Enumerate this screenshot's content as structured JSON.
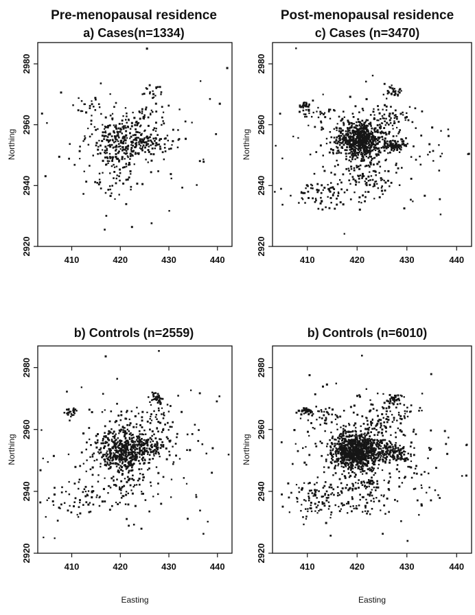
{
  "figure": {
    "left_column_title": "Pre-menopausal residence",
    "right_column_title": "Post-menopausal residence"
  },
  "chart_data": [
    {
      "type": "scatter",
      "title": "a) Cases(n=1334)",
      "xlabel": "",
      "ylabel": "Northing",
      "xlim": [
        403,
        443
      ],
      "ylim": [
        2920,
        2987
      ],
      "xticks": [
        410,
        420,
        430,
        440
      ],
      "yticks": [
        2920,
        2940,
        2960,
        2980
      ],
      "clusters": [
        {
          "x": 420.5,
          "y": 2955,
          "sx": 3.2,
          "sy": 3.5,
          "n": 260
        },
        {
          "x": 426.5,
          "y": 2954,
          "sx": 1.8,
          "sy": 1.5,
          "n": 50
        },
        {
          "x": 427.0,
          "y": 2971,
          "sx": 0.8,
          "sy": 0.8,
          "n": 15
        },
        {
          "x": 413.5,
          "y": 2966,
          "sx": 1.3,
          "sy": 1.5,
          "n": 18
        },
        {
          "x": 420.0,
          "y": 2945,
          "sx": 3.0,
          "sy": 5.0,
          "n": 60
        },
        {
          "x": 426.0,
          "y": 2963,
          "sx": 2.5,
          "sy": 2.5,
          "n": 30
        },
        {
          "x": 423.0,
          "y": 2953,
          "sx": 10.0,
          "sy": 13.0,
          "n": 100
        }
      ]
    },
    {
      "type": "scatter",
      "title": "c) Cases (n=3470)",
      "xlabel": "",
      "ylabel": "Northing",
      "xlim": [
        403,
        443
      ],
      "ylim": [
        2920,
        2987
      ],
      "xticks": [
        410,
        420,
        430,
        440
      ],
      "yticks": [
        2920,
        2940,
        2960,
        2980
      ],
      "clusters": [
        {
          "x": 420.5,
          "y": 2955,
          "sx": 2.5,
          "sy": 3.0,
          "n": 650
        },
        {
          "x": 427.5,
          "y": 2953,
          "sx": 1.2,
          "sy": 1.0,
          "n": 90
        },
        {
          "x": 427.5,
          "y": 2971,
          "sx": 0.8,
          "sy": 0.8,
          "n": 25
        },
        {
          "x": 409.5,
          "y": 2966,
          "sx": 0.6,
          "sy": 0.6,
          "n": 30
        },
        {
          "x": 412.5,
          "y": 2964,
          "sx": 2.0,
          "sy": 2.0,
          "n": 25
        },
        {
          "x": 413.0,
          "y": 2937,
          "sx": 3.5,
          "sy": 2.5,
          "n": 60
        },
        {
          "x": 421.0,
          "y": 2943,
          "sx": 3.0,
          "sy": 4.0,
          "n": 90
        },
        {
          "x": 426.0,
          "y": 2962,
          "sx": 3.0,
          "sy": 3.0,
          "n": 60
        },
        {
          "x": 422.0,
          "y": 2952,
          "sx": 10.0,
          "sy": 13.0,
          "n": 150
        }
      ]
    },
    {
      "type": "scatter",
      "title": "b) Controls (n=2559)",
      "xlabel": "Easting",
      "ylabel": "Northing",
      "xlim": [
        403,
        443
      ],
      "ylim": [
        2920,
        2987
      ],
      "xticks": [
        410,
        420,
        430,
        440
      ],
      "yticks": [
        2920,
        2940,
        2960,
        2980
      ],
      "clusters": [
        {
          "x": 420.5,
          "y": 2953,
          "sx": 2.8,
          "sy": 3.5,
          "n": 480
        },
        {
          "x": 426.0,
          "y": 2954,
          "sx": 2.0,
          "sy": 2.0,
          "n": 70
        },
        {
          "x": 427.5,
          "y": 2970,
          "sx": 0.8,
          "sy": 0.8,
          "n": 30
        },
        {
          "x": 409.8,
          "y": 2966,
          "sx": 0.6,
          "sy": 0.6,
          "n": 25
        },
        {
          "x": 412.5,
          "y": 2938,
          "sx": 3.5,
          "sy": 3.0,
          "n": 50
        },
        {
          "x": 421.0,
          "y": 2942,
          "sx": 3.0,
          "sy": 4.0,
          "n": 60
        },
        {
          "x": 426.0,
          "y": 2963,
          "sx": 3.0,
          "sy": 3.0,
          "n": 50
        },
        {
          "x": 422.0,
          "y": 2952,
          "sx": 10.0,
          "sy": 13.0,
          "n": 170
        }
      ]
    },
    {
      "type": "scatter",
      "title": "b) Controls (n=6010)",
      "xlabel": "Easting",
      "ylabel": "Northing",
      "xlim": [
        403,
        443
      ],
      "ylim": [
        2920,
        2987
      ],
      "xticks": [
        410,
        420,
        430,
        440
      ],
      "yticks": [
        2920,
        2940,
        2960,
        2980
      ],
      "clusters": [
        {
          "x": 420.0,
          "y": 2953,
          "sx": 2.5,
          "sy": 3.0,
          "n": 900
        },
        {
          "x": 427.0,
          "y": 2953,
          "sx": 2.0,
          "sy": 1.5,
          "n": 120
        },
        {
          "x": 427.5,
          "y": 2970,
          "sx": 0.8,
          "sy": 0.8,
          "n": 40
        },
        {
          "x": 409.8,
          "y": 2966,
          "sx": 0.6,
          "sy": 0.6,
          "n": 40
        },
        {
          "x": 413.5,
          "y": 2964,
          "sx": 1.8,
          "sy": 1.8,
          "n": 30
        },
        {
          "x": 412.5,
          "y": 2937,
          "sx": 4.0,
          "sy": 3.0,
          "n": 90
        },
        {
          "x": 421.0,
          "y": 2941,
          "sx": 3.0,
          "sy": 4.5,
          "n": 110
        },
        {
          "x": 426.0,
          "y": 2963,
          "sx": 3.0,
          "sy": 3.0,
          "n": 80
        },
        {
          "x": 422.0,
          "y": 2952,
          "sx": 10.0,
          "sy": 13.0,
          "n": 230
        }
      ]
    }
  ]
}
